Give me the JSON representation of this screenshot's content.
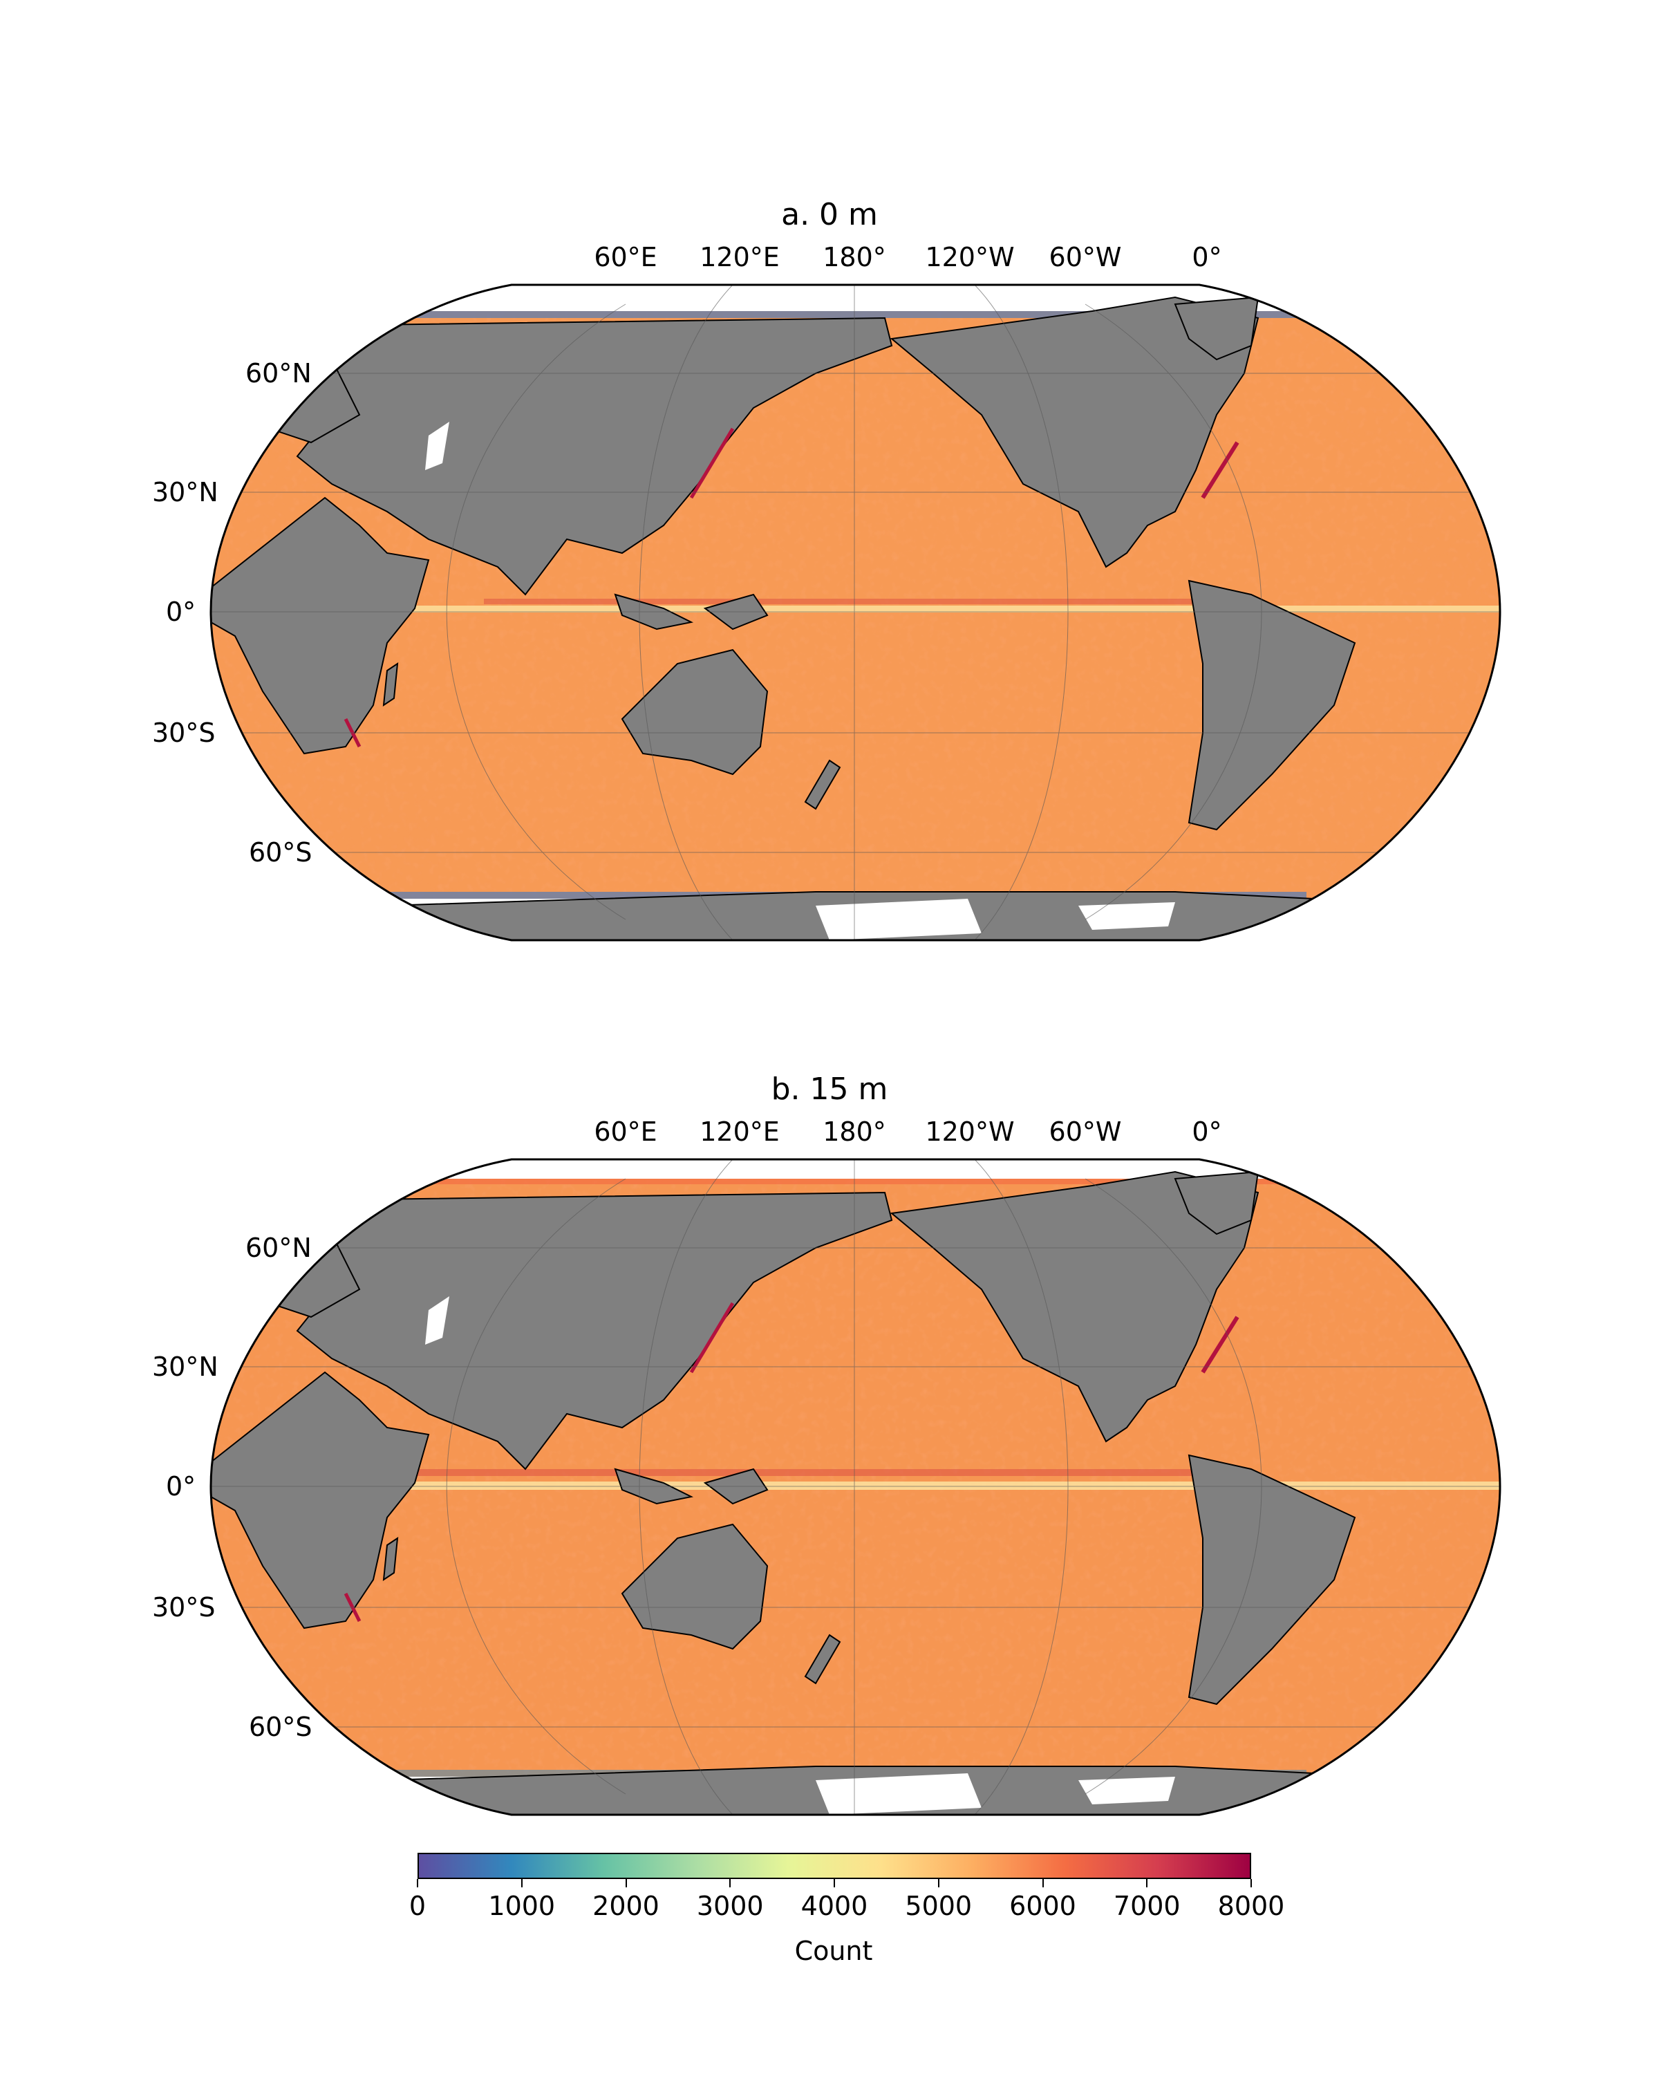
{
  "panels": [
    {
      "title": "a. 0 m",
      "lon_labels": [
        "60°E",
        "120°E",
        "180°",
        "120°W",
        "60°W",
        "0°"
      ],
      "lat_labels": [
        "60°N",
        "30°N",
        "0°",
        "30°S",
        "60°S"
      ]
    },
    {
      "title": "b. 15 m",
      "lon_labels": [
        "60°E",
        "120°E",
        "180°",
        "120°W",
        "60°W",
        "0°"
      ],
      "lat_labels": [
        "60°N",
        "30°N",
        "0°",
        "30°S",
        "60°S"
      ]
    }
  ],
  "colorbar": {
    "label": "Count",
    "ticks": [
      "0",
      "1000",
      "2000",
      "3000",
      "4000",
      "5000",
      "6000",
      "7000",
      "8000"
    ],
    "min": 0,
    "max": 8000,
    "colormap": "Spectral_r",
    "colors": [
      "#5e4fa2",
      "#3288bd",
      "#66c2a5",
      "#abdda4",
      "#e6f598",
      "#fee08b",
      "#fdae61",
      "#f46d43",
      "#d53e4f",
      "#9e0142"
    ]
  },
  "map_colors": {
    "land": "#808080",
    "ocean_base": "#f79a55",
    "no_data": "#ffffff"
  }
}
